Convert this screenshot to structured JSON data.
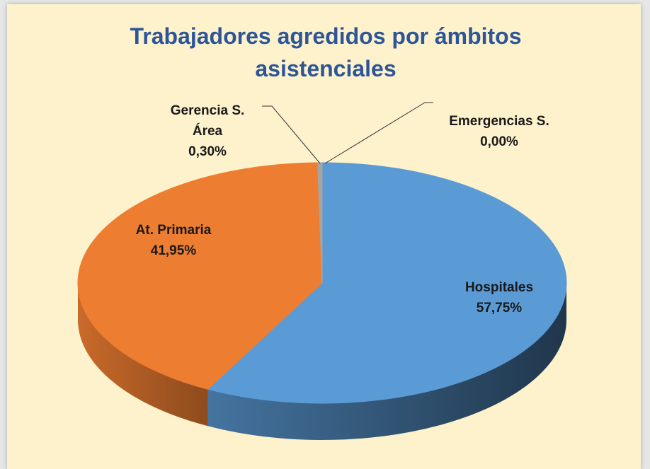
{
  "chart_data": {
    "type": "pie",
    "title": "Trabajadores agredidos por ámbitos asistenciales",
    "categories": [
      "Hospitales",
      "At. Primaria",
      "Gerencia S. Área",
      "Emergencias S."
    ],
    "values": [
      57.75,
      41.95,
      0.3,
      0.0
    ],
    "value_labels": [
      "57,75%",
      "41,95%",
      "0,30%",
      "0,00%"
    ],
    "colors": [
      "#5b9bd5",
      "#ed7d31",
      "#a5a5a5",
      "#ffc000"
    ]
  }
}
